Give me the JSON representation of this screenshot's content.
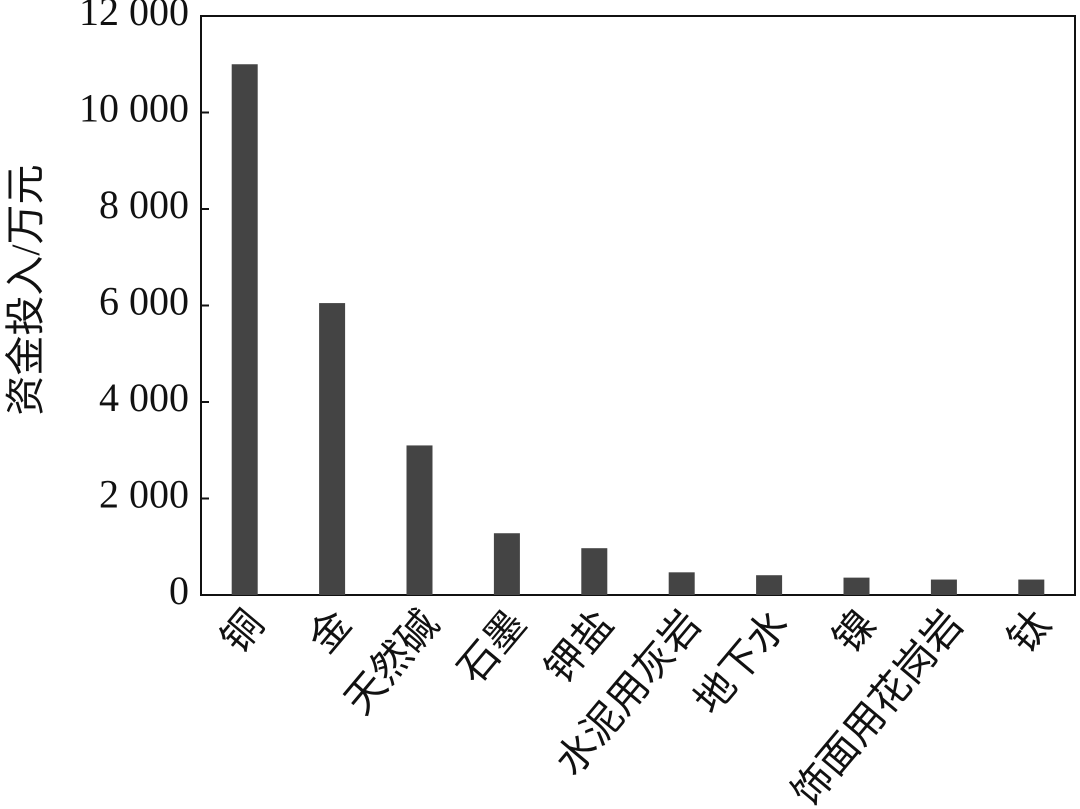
{
  "chart_data": {
    "type": "bar",
    "y_label": "资金投入/万元",
    "categories": [
      "铜",
      "金",
      "天然碱",
      "石墨",
      "钾盐",
      "水泥用灰岩",
      "地下水",
      "镍",
      "饰面用花岗岩",
      "钛"
    ],
    "values": [
      11000,
      6050,
      3100,
      1280,
      970,
      470,
      410,
      360,
      320,
      320
    ],
    "color": "#444444",
    "ylim": [
      0,
      12000
    ],
    "yticks": [
      0,
      {
        "value": 2000,
        "label": "2 000"
      },
      {
        "value": 4000,
        "label": "4 000"
      },
      {
        "value": 6000,
        "label": "6 000"
      },
      {
        "value": 8000,
        "label": "8 000"
      },
      {
        "value": 10000,
        "label": "10 000"
      },
      {
        "value": 12000,
        "label": "12 000"
      }
    ],
    "grid": false
  }
}
